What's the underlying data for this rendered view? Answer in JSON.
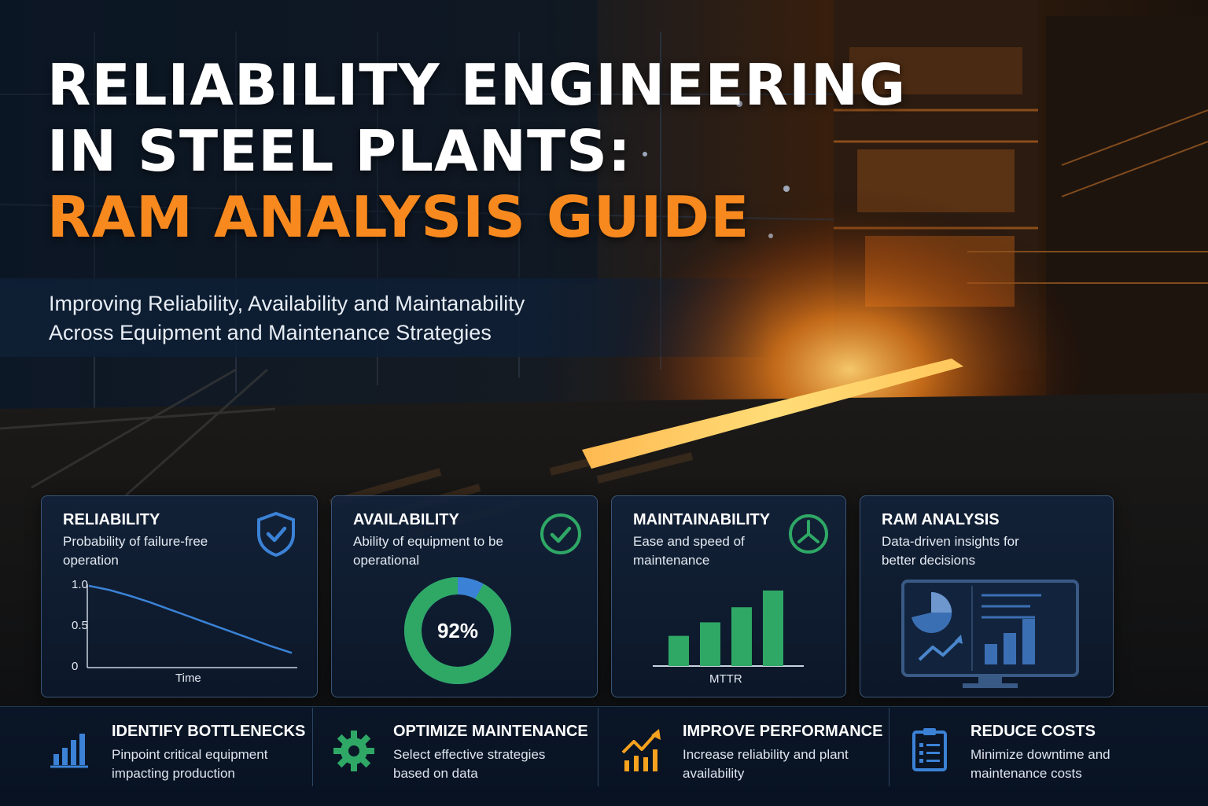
{
  "title": {
    "line1": "RELIABILITY ENGINEERING",
    "line2": "IN STEEL PLANTS:",
    "line3": "RAM ANALYSIS GUIDE"
  },
  "subtitle": {
    "line1": "Improving Reliability, Availability and Maintanability",
    "line2": "Across Equipment and Maintenance Strategies"
  },
  "colors": {
    "accent_orange": "#f7891e",
    "blue": "#3b82d6",
    "green": "#2fa866",
    "card_border": "#3b5576"
  },
  "cards": [
    {
      "title": "RELIABILITY",
      "desc": "Probability of failure-free operation",
      "icon": "shield-check-icon",
      "chart_data": {
        "type": "line",
        "y_ticks": [
          "1.0",
          "0.5",
          "0"
        ],
        "xlabel": "Time",
        "ylim": [
          0,
          1.0
        ],
        "x": [
          0,
          0.1,
          0.2,
          0.3,
          0.4,
          0.5,
          0.6,
          0.7,
          0.8,
          0.9,
          1.0
        ],
        "values": [
          1.0,
          0.95,
          0.88,
          0.8,
          0.71,
          0.62,
          0.53,
          0.44,
          0.35,
          0.26,
          0.18
        ]
      }
    },
    {
      "title": "AVAILABILITY",
      "desc": "Ability of equipment to be operational",
      "icon": "check-circle-icon",
      "chart_data": {
        "type": "pie",
        "value_label": "92%",
        "value": 92
      }
    },
    {
      "title": "MAINTAINABILITY",
      "desc": "Ease and speed of maintenance",
      "icon": "wrench-clock-icon",
      "chart_data": {
        "type": "bar",
        "xlabel": "MTTR",
        "values": [
          38,
          55,
          74,
          95
        ]
      }
    },
    {
      "title": "RAM ANALYSIS",
      "desc": "Data-driven insights for better decisions",
      "icon": "monitor-dashboard-icon"
    }
  ],
  "benefits": [
    {
      "title": "IDENTIFY BOTTLENECKS",
      "desc": "Pinpoint critical equipment impacting production",
      "icon": "bar-chart-icon"
    },
    {
      "title": "OPTIMIZE MAINTENANCE",
      "desc": "Select effective strategies based on data",
      "icon": "gear-icon"
    },
    {
      "title": "IMPROVE PERFORMANCE",
      "desc": "Increase reliability and plant availability",
      "icon": "trend-up-icon"
    },
    {
      "title": "REDUCE COSTS",
      "desc": "Minimize downtime and maintenance costs",
      "icon": "clipboard-icon"
    }
  ]
}
